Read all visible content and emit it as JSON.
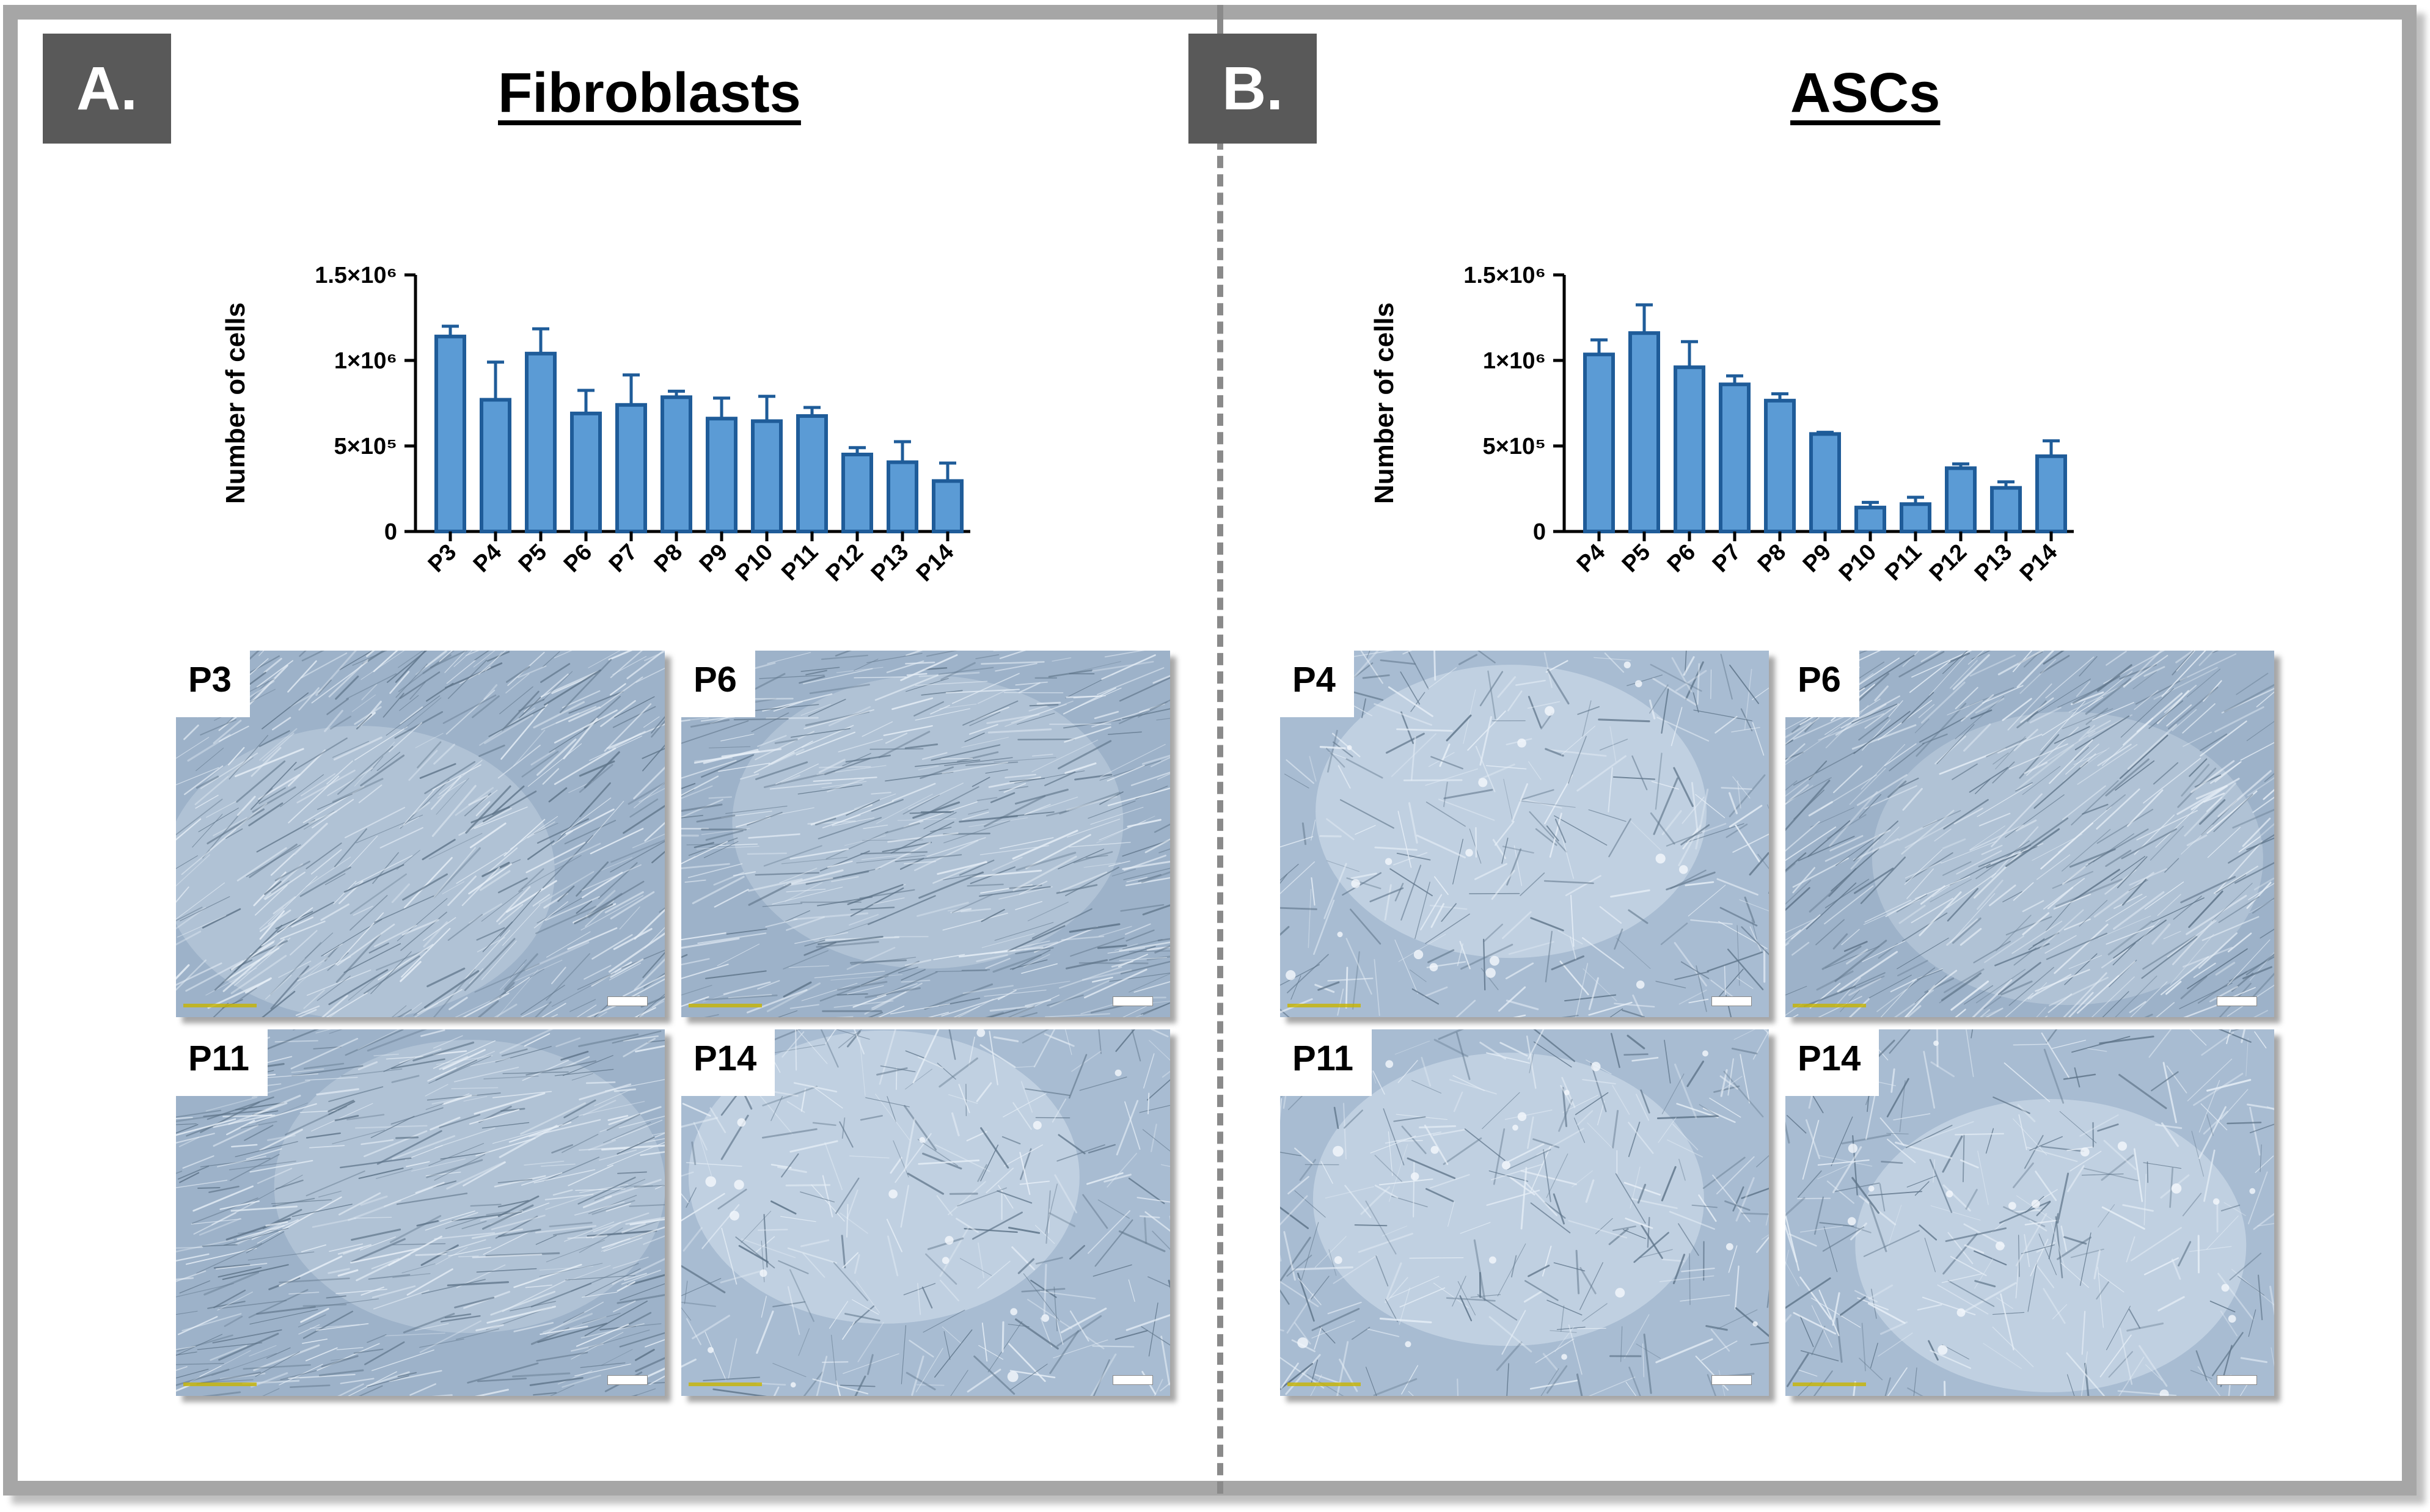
{
  "panels": [
    {
      "letter": "A.",
      "title": "Fibroblasts",
      "images": [
        {
          "label": "P3",
          "tone": "dense"
        },
        {
          "label": "P6",
          "tone": "dense"
        },
        {
          "label": "P11",
          "tone": "dense"
        },
        {
          "label": "P14",
          "tone": "sparse"
        }
      ]
    },
    {
      "letter": "B.",
      "title": "ASCs",
      "images": [
        {
          "label": "P4",
          "tone": "sparse"
        },
        {
          "label": "P6",
          "tone": "dense"
        },
        {
          "label": "P11",
          "tone": "sparse"
        },
        {
          "label": "P14",
          "tone": "sparse"
        }
      ]
    }
  ],
  "colors": {
    "bar_fill": "#5b9bd5",
    "bar_stroke": "#1f5c99",
    "axis": "#000000",
    "letter_bg": "#595959",
    "frame": "#a6a6a6"
  },
  "chart_data": [
    {
      "type": "bar",
      "title": "Fibroblasts",
      "xlabel": "",
      "ylabel": "Number of cells",
      "ylim": [
        0,
        1500000
      ],
      "yticks": [
        0,
        500000,
        1000000,
        1500000
      ],
      "ytick_labels": [
        "0",
        "5×10⁵",
        "1×10⁶",
        "1.5×10⁶"
      ],
      "categories": [
        "P3",
        "P4",
        "P5",
        "P6",
        "P7",
        "P8",
        "P9",
        "P10",
        "P11",
        "P12",
        "P13",
        "P14"
      ],
      "values": [
        1140000,
        770000,
        1040000,
        690000,
        740000,
        785000,
        660000,
        645000,
        675000,
        450000,
        405000,
        295000
      ],
      "errors": [
        60000,
        220000,
        145000,
        135000,
        175000,
        35000,
        120000,
        145000,
        50000,
        40000,
        120000,
        105000
      ]
    },
    {
      "type": "bar",
      "title": "ASCs",
      "xlabel": "",
      "ylabel": "Number of cells",
      "ylim": [
        0,
        1500000
      ],
      "yticks": [
        0,
        500000,
        1000000,
        1500000
      ],
      "ytick_labels": [
        "0",
        "5×10⁵",
        "1×10⁶",
        "1.5×10⁶"
      ],
      "categories": [
        "P4",
        "P5",
        "P6",
        "P7",
        "P8",
        "P9",
        "P10",
        "P11",
        "P12",
        "P13",
        "P14"
      ],
      "values": [
        1035000,
        1160000,
        960000,
        860000,
        765000,
        570000,
        140000,
        160000,
        370000,
        255000,
        440000
      ],
      "errors": [
        85000,
        165000,
        150000,
        50000,
        40000,
        10000,
        30000,
        40000,
        25000,
        35000,
        90000
      ]
    }
  ]
}
